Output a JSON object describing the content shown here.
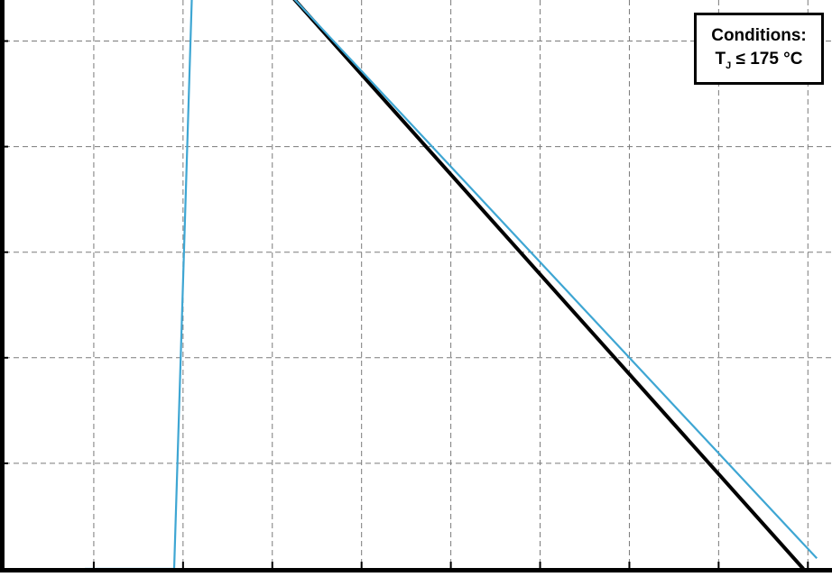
{
  "chart_data": {
    "type": "line",
    "title": "",
    "xlabel": "",
    "ylabel": "",
    "x_ticks": [
      -2,
      -1,
      0,
      1,
      2,
      3,
      4,
      5,
      6,
      7
    ],
    "y_ticks": [
      0,
      1,
      2,
      3,
      4,
      5
    ],
    "xlim": [
      -2.0,
      7.27
    ],
    "ylim": [
      0.0,
      5.44
    ],
    "grid": true,
    "series": [
      {
        "name": "",
        "color": "#000000",
        "points": [
          [
            -2.0,
            5.44
          ],
          [
            1.2,
            5.44
          ],
          [
            6.95,
            0.0
          ]
        ]
      },
      {
        "name": "",
        "color": "#3ea6d3",
        "points": [
          [
            -1.1,
            0.0
          ],
          [
            -0.1,
            0.0
          ],
          [
            0.1,
            5.44
          ],
          [
            1.2,
            5.44
          ],
          [
            7.1,
            0.1
          ]
        ]
      }
    ],
    "annotation": {
      "line1": "Conditions:",
      "line2_prefix": "T",
      "line2_sub": "J",
      "line2_suffix": " ≤ 175 °C"
    }
  }
}
